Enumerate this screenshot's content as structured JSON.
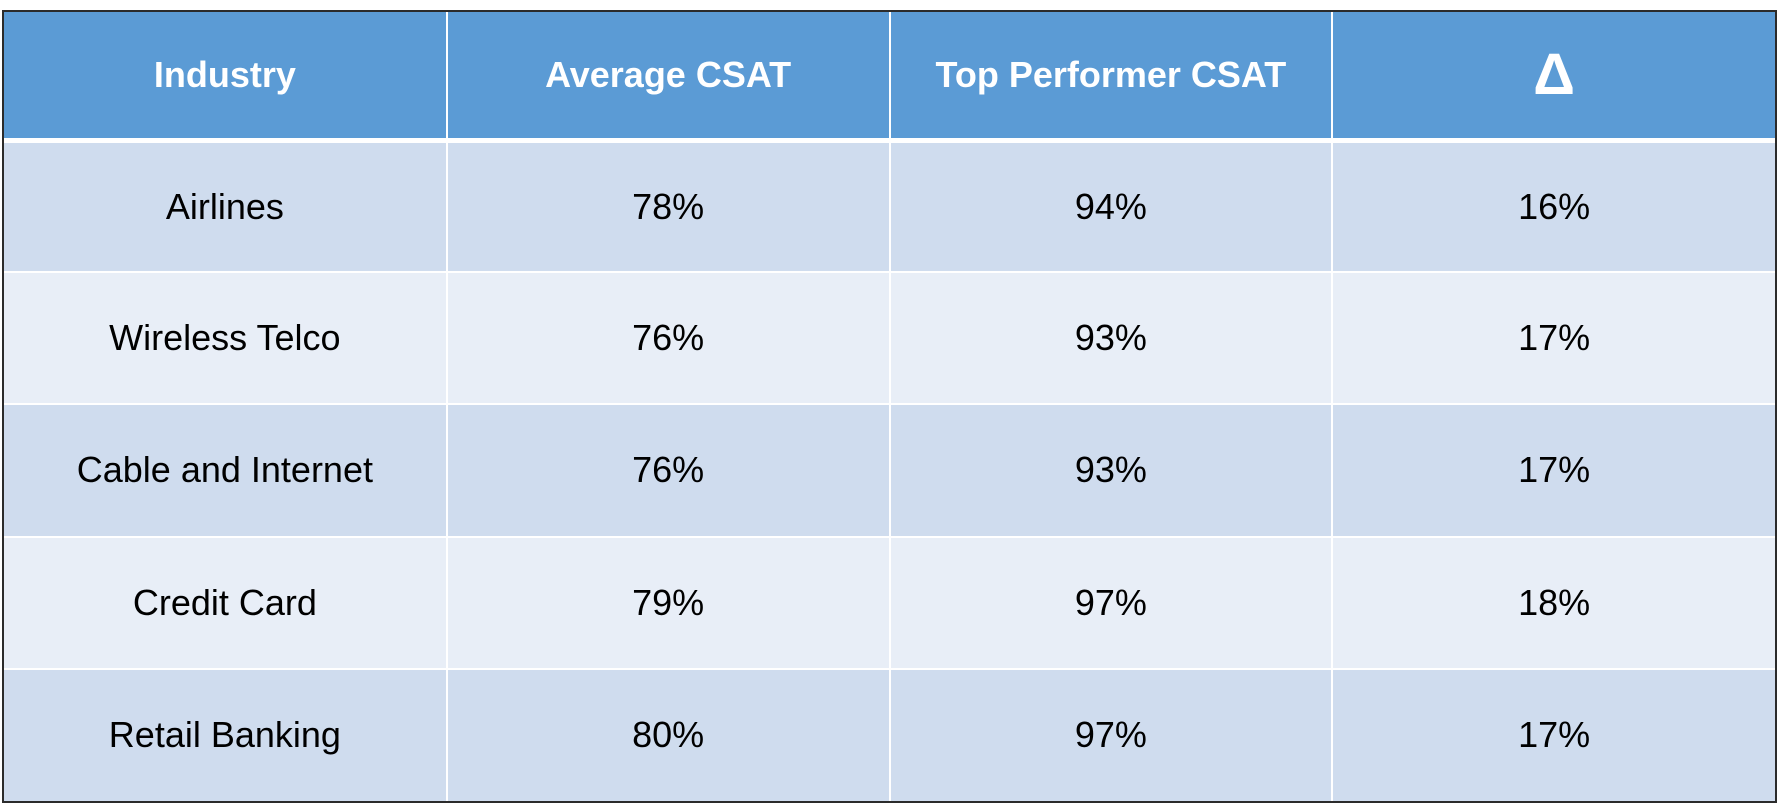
{
  "chart_data": {
    "type": "table",
    "columns": [
      "Industry",
      "Average CSAT",
      "Top Performer CSAT",
      "Δ"
    ],
    "rows": [
      [
        "Airlines",
        "78%",
        "94%",
        "16%"
      ],
      [
        "Wireless Telco",
        "76%",
        "93%",
        "17%"
      ],
      [
        "Cable and Internet",
        "76%",
        "93%",
        "17%"
      ],
      [
        "Credit Card",
        "79%",
        "97%",
        "18%"
      ],
      [
        "Retail Banking",
        "80%",
        "97%",
        "17%"
      ]
    ]
  },
  "colors": {
    "header_bg": "#5b9bd5",
    "row_dark": "#cfdcee",
    "row_light": "#e8eef7"
  }
}
